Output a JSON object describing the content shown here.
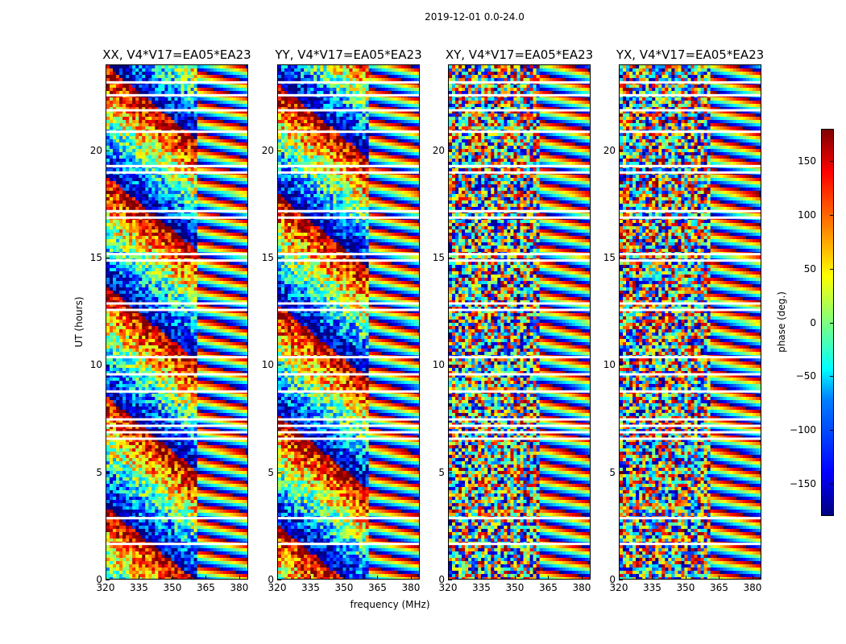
{
  "figure_title": "2019-12-01 0.0-24.0",
  "chart_data": {
    "type": "heatmap",
    "title": "2019-12-01 0.0-24.0",
    "xlabel": "frequency (MHz)",
    "ylabel": "UT (hours)",
    "xlim": [
      320,
      384
    ],
    "ylim": [
      0,
      24
    ],
    "x_ticks": [
      "320",
      "335",
      "350",
      "365",
      "380"
    ],
    "x_tick_values": [
      320,
      335,
      350,
      365,
      380
    ],
    "y_ticks": [
      "0",
      "5",
      "10",
      "15",
      "20"
    ],
    "y_tick_values": [
      0,
      5,
      10,
      15,
      20
    ],
    "panels": [
      {
        "title": "XX, V4*V17=EA05*EA23",
        "polarization": "XX"
      },
      {
        "title": "YY, V4*V17=EA05*EA23",
        "polarization": "YY"
      },
      {
        "title": "XY, V4*V17=EA05*EA23",
        "polarization": "XY"
      },
      {
        "title": "YX, V4*V17=EA05*EA23",
        "polarization": "YX"
      }
    ],
    "colorbar": {
      "label": "phase (deg.)",
      "range": [
        -180,
        180
      ],
      "ticks": [
        "150",
        "100",
        "50",
        "0",
        "−50",
        "−100",
        "−150"
      ],
      "tick_values": [
        150,
        100,
        50,
        0,
        -50,
        -100,
        -150
      ],
      "colormap": "jet"
    },
    "flagged_time_gaps_hours": [
      23.2,
      22.6,
      21.9,
      20.9,
      19.3,
      19.0,
      17.2,
      16.9,
      15.2,
      14.9,
      12.9,
      12.6,
      10.4,
      9.6,
      8.8,
      7.5,
      7.2,
      6.9,
      6.6,
      2.9,
      1.7
    ]
  }
}
